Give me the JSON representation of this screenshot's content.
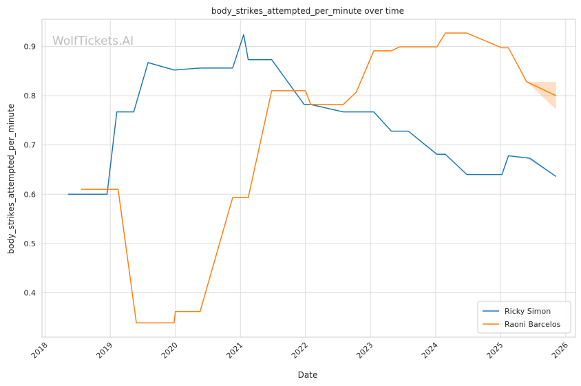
{
  "chart_data": {
    "type": "line",
    "title": "body_strikes_attempted_per_minute over time",
    "xlabel": "Date",
    "ylabel": "body_strikes_attempted_per_minute",
    "watermark": "WolfTickets.AI",
    "xlim": [
      2017.95,
      2026.15
    ],
    "ylim": [
      0.31,
      0.955
    ],
    "x_ticks": [
      "2018",
      "2019",
      "2020",
      "2021",
      "2022",
      "2023",
      "2024",
      "2025",
      "2026"
    ],
    "y_ticks": [
      "0.4",
      "0.5",
      "0.6",
      "0.7",
      "0.8",
      "0.9"
    ],
    "grid": true,
    "legend": "lower-right",
    "series": [
      {
        "name": "Ricky Simon",
        "color": "#1f77b4",
        "points": [
          [
            2018.35,
            0.6
          ],
          [
            2018.95,
            0.6
          ],
          [
            2019.1,
            0.767
          ],
          [
            2019.36,
            0.767
          ],
          [
            2019.58,
            0.867
          ],
          [
            2019.98,
            0.852
          ],
          [
            2020.38,
            0.856
          ],
          [
            2020.88,
            0.856
          ],
          [
            2021.05,
            0.924
          ],
          [
            2021.12,
            0.873
          ],
          [
            2021.48,
            0.873
          ],
          [
            2021.98,
            0.782
          ],
          [
            2022.08,
            0.782
          ],
          [
            2022.58,
            0.767
          ],
          [
            2023.05,
            0.767
          ],
          [
            2023.32,
            0.728
          ],
          [
            2023.58,
            0.728
          ],
          [
            2024.02,
            0.681
          ],
          [
            2024.15,
            0.681
          ],
          [
            2024.48,
            0.64
          ],
          [
            2025.02,
            0.64
          ],
          [
            2025.12,
            0.678
          ],
          [
            2025.45,
            0.673
          ],
          [
            2025.85,
            0.636
          ]
        ]
      },
      {
        "name": "Raoni Barcelos",
        "color": "#ff7f0e",
        "points": [
          [
            2018.55,
            0.61
          ],
          [
            2019.12,
            0.61
          ],
          [
            2019.4,
            0.339
          ],
          [
            2019.98,
            0.339
          ],
          [
            2020.0,
            0.362
          ],
          [
            2020.38,
            0.362
          ],
          [
            2020.88,
            0.593
          ],
          [
            2021.12,
            0.593
          ],
          [
            2021.48,
            0.81
          ],
          [
            2022.0,
            0.81
          ],
          [
            2022.08,
            0.782
          ],
          [
            2022.58,
            0.782
          ],
          [
            2022.78,
            0.807
          ],
          [
            2023.05,
            0.891
          ],
          [
            2023.32,
            0.891
          ],
          [
            2023.45,
            0.899
          ],
          [
            2024.02,
            0.899
          ],
          [
            2024.15,
            0.927
          ],
          [
            2024.48,
            0.927
          ],
          [
            2025.02,
            0.897
          ],
          [
            2025.12,
            0.897
          ],
          [
            2025.4,
            0.828
          ],
          [
            2025.85,
            0.8
          ]
        ]
      }
    ],
    "confidence_bands": [
      {
        "series": "Raoni Barcelos",
        "color": "#ff7f0e",
        "points": [
          [
            2025.4,
            0.828,
            0.828
          ],
          [
            2025.85,
            0.772,
            0.828
          ]
        ]
      },
      {
        "series": "Ricky Simon",
        "color": "#1f77b4",
        "points": [
          [
            2025.4,
            0.673,
            0.676
          ],
          [
            2025.85,
            0.636,
            0.636
          ]
        ]
      }
    ]
  }
}
